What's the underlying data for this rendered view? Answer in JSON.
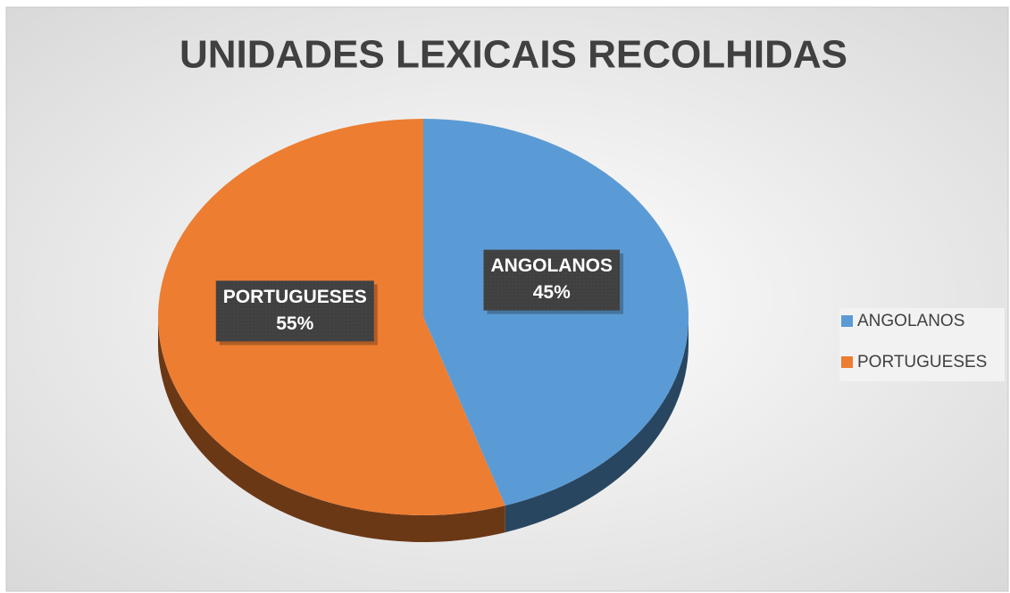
{
  "chart_data": {
    "type": "pie",
    "title": "UNIDADES LEXICAIS RECOLHIDAS",
    "categories": [
      "ANGOLANOS",
      "PORTUGUESES"
    ],
    "values": [
      45,
      55
    ],
    "value_labels": [
      "45%",
      "55%"
    ],
    "colors": [
      "#5b9bd5",
      "#ed7d31"
    ],
    "legend": "right"
  }
}
